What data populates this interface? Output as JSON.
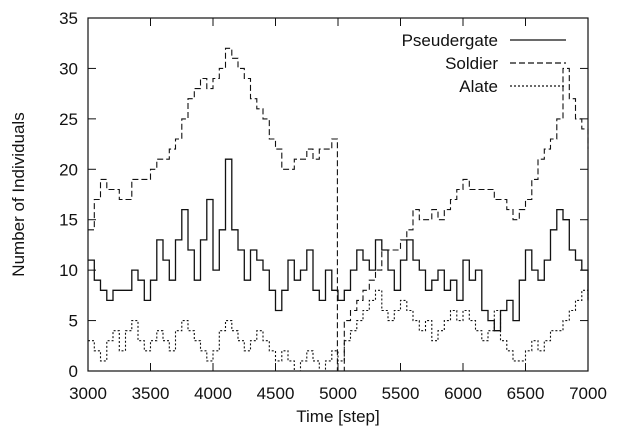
{
  "chart_data": {
    "type": "line",
    "xlabel": "Time [step]",
    "ylabel": "Number of Individuals",
    "xlim": [
      3000,
      7000
    ],
    "ylim": [
      0,
      35
    ],
    "xticks": [
      3000,
      3500,
      4000,
      4500,
      5000,
      5500,
      6000,
      6500,
      7000
    ],
    "yticks": [
      0,
      5,
      10,
      15,
      20,
      25,
      30,
      35
    ],
    "legend_position": "top-right",
    "grid": false,
    "series": [
      {
        "name": "Pseudergate",
        "style": "solid",
        "x": [
          3000,
          3050,
          3100,
          3150,
          3200,
          3250,
          3300,
          3350,
          3400,
          3450,
          3500,
          3550,
          3600,
          3650,
          3700,
          3750,
          3800,
          3850,
          3900,
          3950,
          4000,
          4050,
          4100,
          4150,
          4200,
          4250,
          4300,
          4350,
          4400,
          4450,
          4500,
          4550,
          4600,
          4650,
          4700,
          4750,
          4800,
          4850,
          4900,
          4950,
          5000,
          5050,
          5100,
          5150,
          5200,
          5250,
          5300,
          5350,
          5400,
          5450,
          5500,
          5550,
          5600,
          5650,
          5700,
          5750,
          5800,
          5850,
          5900,
          5950,
          6000,
          6050,
          6100,
          6150,
          6200,
          6250,
          6300,
          6350,
          6400,
          6450,
          6500,
          6550,
          6600,
          6650,
          6700,
          6750,
          6800,
          6850,
          6900,
          6950,
          7000
        ],
        "y": [
          11,
          9,
          8,
          7,
          8,
          8,
          8,
          10,
          9,
          7,
          9,
          13,
          11,
          9,
          13,
          16,
          12,
          9,
          13,
          17,
          10,
          14,
          21,
          14,
          12,
          9,
          12,
          11,
          10,
          8,
          6,
          8,
          11,
          9,
          10,
          12,
          8,
          7,
          10,
          8,
          7,
          8,
          10,
          12,
          11,
          10,
          13,
          12,
          10,
          8,
          11,
          13,
          11,
          10,
          8,
          9,
          10,
          8,
          9,
          7,
          11,
          9,
          10,
          6,
          5,
          4,
          6,
          7,
          5,
          9,
          12,
          10,
          9,
          11,
          14,
          16,
          15,
          12,
          11,
          10,
          7
        ]
      },
      {
        "name": "Soldier",
        "style": "dashed",
        "x": [
          3000,
          3050,
          3100,
          3150,
          3200,
          3250,
          3300,
          3350,
          3400,
          3450,
          3500,
          3550,
          3600,
          3650,
          3700,
          3750,
          3800,
          3850,
          3900,
          3950,
          4000,
          4050,
          4100,
          4150,
          4200,
          4250,
          4300,
          4350,
          4400,
          4450,
          4500,
          4550,
          4600,
          4650,
          4700,
          4750,
          4800,
          4850,
          4900,
          4950,
          4990,
          4995,
          5050,
          5100,
          5150,
          5200,
          5250,
          5300,
          5350,
          5400,
          5450,
          5500,
          5550,
          5600,
          5650,
          5700,
          5750,
          5800,
          5850,
          5900,
          5950,
          6000,
          6050,
          6100,
          6150,
          6200,
          6250,
          6300,
          6350,
          6400,
          6450,
          6500,
          6550,
          6600,
          6650,
          6700,
          6750,
          6800,
          6850,
          6900,
          6950,
          7000
        ],
        "y": [
          14,
          17,
          19,
          18,
          18,
          17,
          17,
          19,
          19,
          19,
          20,
          21,
          21,
          22,
          23,
          25,
          27,
          28,
          29,
          28,
          29,
          30,
          32,
          31,
          30,
          29,
          27,
          26,
          25,
          23,
          22,
          20,
          20,
          21,
          21,
          22,
          21,
          22,
          22,
          23,
          23,
          0,
          5,
          6,
          7,
          8,
          9,
          10,
          12,
          12,
          12,
          13,
          14,
          16,
          15,
          15,
          16,
          15,
          16,
          17,
          18,
          19,
          18,
          18,
          18,
          18,
          17,
          17,
          16,
          15,
          16,
          17,
          19,
          21,
          22,
          23,
          25,
          30,
          27,
          25,
          24,
          22
        ]
      },
      {
        "name": "Alate",
        "style": "dotted",
        "x": [
          3000,
          3050,
          3100,
          3150,
          3200,
          3250,
          3300,
          3350,
          3400,
          3450,
          3500,
          3550,
          3600,
          3650,
          3700,
          3750,
          3800,
          3850,
          3900,
          3950,
          4000,
          4050,
          4100,
          4150,
          4200,
          4250,
          4300,
          4350,
          4400,
          4450,
          4500,
          4550,
          4600,
          4650,
          4700,
          4750,
          4800,
          4850,
          4900,
          4950,
          5000,
          5050,
          5100,
          5150,
          5200,
          5250,
          5300,
          5350,
          5400,
          5450,
          5500,
          5550,
          5600,
          5650,
          5700,
          5750,
          5800,
          5850,
          5900,
          5950,
          6000,
          6050,
          6100,
          6150,
          6200,
          6250,
          6300,
          6350,
          6400,
          6450,
          6500,
          6550,
          6600,
          6650,
          6700,
          6750,
          6800,
          6850,
          6900,
          6950,
          7000
        ],
        "y": [
          3,
          2,
          1,
          3,
          4,
          2,
          4,
          5,
          3,
          2,
          3,
          4,
          3,
          2,
          4,
          5,
          4,
          3,
          2,
          1,
          2,
          4,
          5,
          4,
          3,
          2,
          3,
          4,
          3,
          2,
          1,
          2,
          1,
          0,
          1,
          2,
          1,
          0,
          1,
          2,
          1,
          3,
          4,
          5,
          6,
          7,
          8,
          6,
          5,
          6,
          7,
          6,
          5,
          4,
          5,
          3,
          4,
          5,
          6,
          5,
          6,
          5,
          4,
          3,
          4,
          6,
          3,
          2,
          1,
          1,
          2,
          3,
          2,
          3,
          4,
          4,
          5,
          6,
          7,
          8,
          7
        ]
      }
    ]
  }
}
